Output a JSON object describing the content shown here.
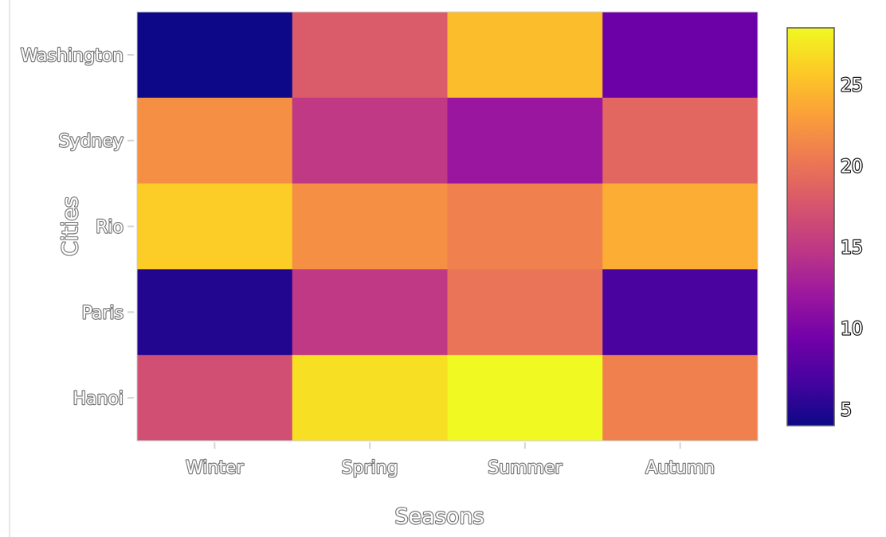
{
  "chart_data": {
    "type": "heatmap",
    "title": "",
    "xlabel": "Seasons",
    "ylabel": "Cities",
    "x_categories": [
      "Winter",
      "Spring",
      "Summer",
      "Autumn"
    ],
    "y_categories": [
      "Washington",
      "Sydney",
      "Rio",
      "Paris",
      "Hanoi"
    ],
    "values": [
      [
        4,
        18,
        25,
        9
      ],
      [
        22,
        15,
        12,
        19
      ],
      [
        26,
        22,
        21,
        24
      ],
      [
        5,
        15,
        20,
        7
      ],
      [
        17,
        27,
        28.5,
        21
      ]
    ],
    "colorscale": "plasma",
    "zmin": 4,
    "zmax": 28.5,
    "colorbar_ticks": [
      5,
      10,
      15,
      20,
      25
    ],
    "grid": false
  }
}
